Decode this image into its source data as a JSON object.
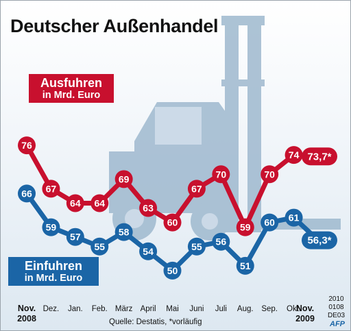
{
  "title": "Deutscher Außenhandel",
  "exports_label": {
    "line1": "Ausfuhren",
    "line2": "in Mrd. Euro"
  },
  "imports_label": {
    "line1": "Einfuhren",
    "line2": "in Mrd. Euro"
  },
  "source": "Quelle: Destatis, *vorläufig",
  "code": {
    "line1": "2010",
    "line2": "0108",
    "line3": "DE03"
  },
  "agency": "AFP",
  "colors": {
    "exports": "#c8102e",
    "imports": "#1b65a6",
    "background": "#dde8f1",
    "forklift": "#9fb9cf"
  },
  "chart_data": {
    "type": "line",
    "x": [
      "Nov. 2008",
      "Dez.",
      "Jan.",
      "Feb.",
      "März",
      "April",
      "Mai",
      "Juni",
      "Juli",
      "Aug.",
      "Sep.",
      "Okt.",
      "Nov. 2009"
    ],
    "x_tick_lines": [
      [
        "Nov.",
        "2008"
      ],
      [
        "Dez."
      ],
      [
        "Jan."
      ],
      [
        "Feb."
      ],
      [
        "März"
      ],
      [
        "April"
      ],
      [
        "Mai"
      ],
      [
        "Juni"
      ],
      [
        "Juli"
      ],
      [
        "Aug."
      ],
      [
        "Sep."
      ],
      [
        "Okt."
      ],
      [
        "Nov.",
        "2009"
      ]
    ],
    "series": [
      {
        "name": "Ausfuhren in Mrd. Euro",
        "color": "#c8102e",
        "values": [
          76,
          67,
          64,
          64,
          69,
          63,
          60,
          67,
          70,
          59,
          70,
          74,
          73.7
        ],
        "labels": [
          "76",
          "67",
          "64",
          "64",
          "69",
          "63",
          "60",
          "67",
          "70",
          "59",
          "70",
          "74",
          "73,7*"
        ]
      },
      {
        "name": "Einfuhren in Mrd. Euro",
        "color": "#1b65a6",
        "values": [
          66,
          59,
          57,
          55,
          58,
          54,
          50,
          55,
          56,
          51,
          60,
          61,
          56.3
        ],
        "labels": [
          "66",
          "59",
          "57",
          "55",
          "58",
          "54",
          "50",
          "55",
          "56",
          "51",
          "60",
          "61",
          "56,3*"
        ]
      }
    ],
    "ylim": [
      47,
      79
    ],
    "grid": false,
    "legend": "inline"
  }
}
